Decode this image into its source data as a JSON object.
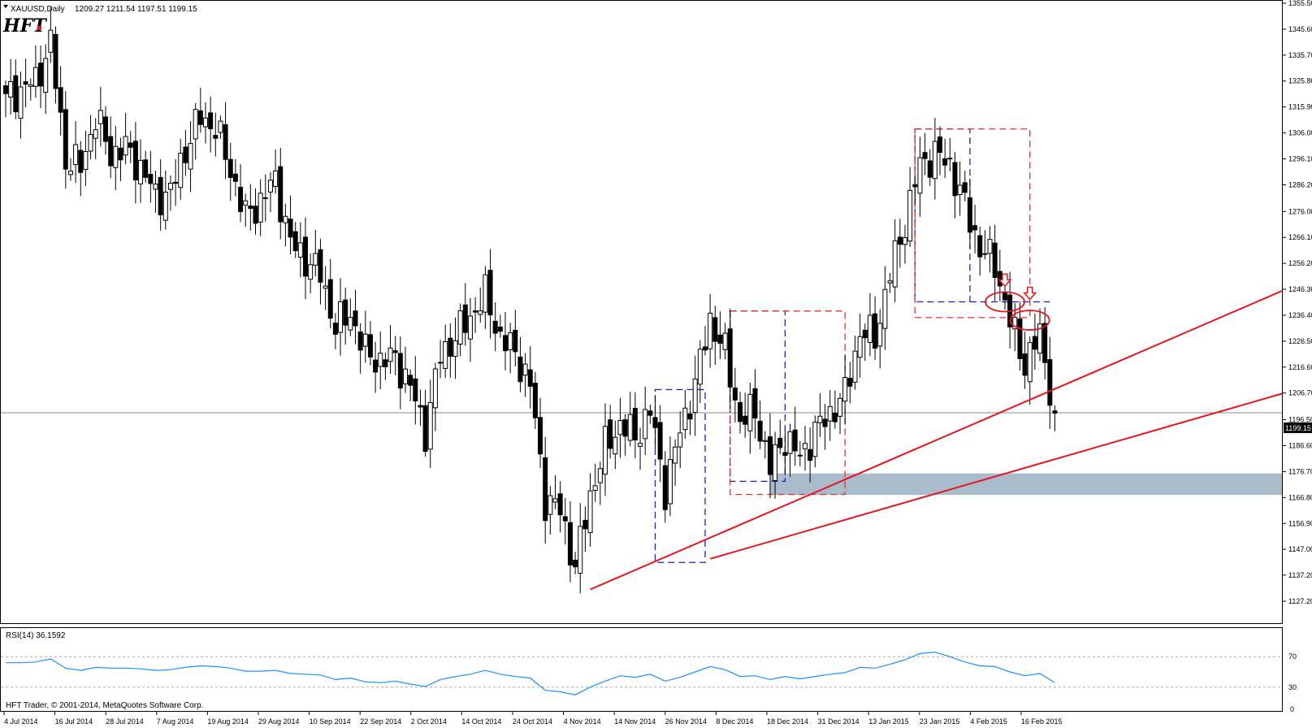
{
  "header": {
    "symbol": "XAUUSD,Daily",
    "ohlc": "1209.27 1211.54 1197.51 1199.15",
    "logo_text": "HFT"
  },
  "price_axis": {
    "labels": [
      "1355.50",
      "1345.60",
      "1335.70",
      "1325.80",
      "1315.90",
      "1306.00",
      "1296.10",
      "1286.20",
      "1276.00",
      "1266.10",
      "1256.20",
      "1246.30",
      "1236.40",
      "1226.50",
      "1216.60",
      "1206.70",
      "1196.50",
      "1186.60",
      "1176.70",
      "1166.80",
      "1156.90",
      "1147.00",
      "1137.20",
      "1127.20"
    ],
    "current_price": "1199.15"
  },
  "rsi": {
    "label": "RSI(14) 36.1592",
    "levels": [
      "70",
      "30"
    ],
    "zero": "0",
    "color": "#1e90ff"
  },
  "copyright": "HFT Trader, © 2001-2014, MetaQuotes Software Corp.",
  "date_axis": [
    "4 Jul 2014",
    "16 Jul 2014",
    "28 Jul 2014",
    "7 Aug 2014",
    "19 Aug 2014",
    "29 Aug 2014",
    "10 Sep 2014",
    "22 Sep 2014",
    "2 Oct 2014",
    "14 Oct 2014",
    "24 Oct 2014",
    "4 Nov 2014",
    "14 Nov 2014",
    "26 Nov 2014",
    "8 Dec 2014",
    "18 Dec 2014",
    "31 Dec 2014",
    "13 Jan 2015",
    "23 Jan 2015",
    "4 Feb 2015",
    "16 Feb 2015"
  ],
  "colors": {
    "trendline": "#e8141e",
    "box_blue": "#1a1adf",
    "box_red": "#e83030",
    "support_zone": "#a9bccb",
    "bear_candle": "#000000",
    "bull_candle": "#ffffff"
  },
  "chart_data": {
    "type": "candlestick",
    "ylim": [
      1127.2,
      1355.5
    ],
    "close_anchors": [
      [
        0,
        1321
      ],
      [
        3,
        1322
      ],
      [
        6,
        1326
      ],
      [
        9,
        1340
      ],
      [
        12,
        1296
      ],
      [
        15,
        1293
      ],
      [
        18,
        1312
      ],
      [
        21,
        1298
      ],
      [
        24,
        1300
      ],
      [
        27,
        1293
      ],
      [
        30,
        1282
      ],
      [
        33,
        1283
      ],
      [
        36,
        1300
      ],
      [
        39,
        1312
      ],
      [
        42,
        1308
      ],
      [
        45,
        1292
      ],
      [
        48,
        1274
      ],
      [
        51,
        1280
      ],
      [
        54,
        1288
      ],
      [
        57,
        1264
      ],
      [
        60,
        1258
      ],
      [
        63,
        1252
      ],
      [
        66,
        1232
      ],
      [
        69,
        1237
      ],
      [
        72,
        1222
      ],
      [
        75,
        1219
      ],
      [
        78,
        1220
      ],
      [
        81,
        1209
      ],
      [
        84,
        1192
      ],
      [
        87,
        1221
      ],
      [
        90,
        1228
      ],
      [
        93,
        1236
      ],
      [
        96,
        1244
      ],
      [
        99,
        1228
      ],
      [
        102,
        1222
      ],
      [
        105,
        1210
      ],
      [
        108,
        1166
      ],
      [
        111,
        1162
      ],
      [
        114,
        1140
      ],
      [
        117,
        1168
      ],
      [
        120,
        1186
      ],
      [
        123,
        1195
      ],
      [
        126,
        1190
      ],
      [
        129,
        1200
      ],
      [
        132,
        1170
      ],
      [
        135,
        1192
      ],
      [
        138,
        1210
      ],
      [
        141,
        1235
      ],
      [
        144,
        1222
      ],
      [
        147,
        1196
      ],
      [
        150,
        1200
      ],
      [
        153,
        1178
      ],
      [
        156,
        1190
      ],
      [
        159,
        1182
      ],
      [
        162,
        1192
      ],
      [
        165,
        1199
      ],
      [
        168,
        1206
      ],
      [
        171,
        1230
      ],
      [
        174,
        1228
      ],
      [
        177,
        1252
      ],
      [
        180,
        1272
      ],
      [
        183,
        1294
      ],
      [
        186,
        1298
      ],
      [
        189,
        1294
      ],
      [
        192,
        1278
      ],
      [
        195,
        1262
      ],
      [
        198,
        1256
      ],
      [
        201,
        1234
      ],
      [
        204,
        1218
      ],
      [
        207,
        1229
      ],
      [
        210,
        1199
      ]
    ],
    "candle_count": 211,
    "horizontal_line": 1199.15,
    "support_zone": [
      1167.8,
      1176.0
    ],
    "trendlines": [
      {
        "from": [
          117,
          1131.7
        ],
        "to": [
          251,
          1242.0
        ]
      },
      {
        "from": [
          141,
          1143.4
        ],
        "to": [
          251,
          1204.0
        ]
      }
    ],
    "boxes": [
      {
        "style": "blue",
        "x": [
          130,
          140
        ],
        "y": [
          1142.0,
          1208.0
        ]
      },
      {
        "style": "blue",
        "x": [
          145,
          156
        ],
        "y": [
          1173.0,
          1238.0
        ]
      },
      {
        "style": "red",
        "x": [
          145,
          168
        ],
        "y": [
          1168.0,
          1238.0
        ]
      },
      {
        "style": "blue",
        "x": [
          182,
          193
        ],
        "y": [
          1241.5,
          1307.5
        ]
      },
      {
        "style": "red",
        "x": [
          182,
          205
        ],
        "y": [
          1235.5,
          1307.5
        ]
      }
    ],
    "dashed_hline": {
      "x": [
        193,
        209
      ],
      "y": 1241.5
    },
    "ellipses": [
      {
        "cx": 200,
        "cy": 1241.5
      },
      {
        "cx": 205,
        "cy": 1234.5
      }
    ],
    "arrows": [
      {
        "x": 200,
        "y": 1249.0
      },
      {
        "x": 205,
        "y": 1244.0
      }
    ],
    "rsi_values": [
      62,
      62,
      63,
      67,
      55,
      52,
      56,
      55,
      55,
      54,
      52,
      53,
      56,
      58,
      57,
      55,
      51,
      51,
      52,
      48,
      47,
      46,
      40,
      42,
      37,
      36,
      38,
      34,
      31,
      40,
      44,
      47,
      52,
      47,
      44,
      42,
      26,
      24,
      20,
      30,
      38,
      45,
      43,
      47,
      38,
      43,
      50,
      57,
      53,
      44,
      45,
      40,
      44,
      41,
      44,
      47,
      49,
      56,
      55,
      60,
      66,
      74,
      76,
      70,
      63,
      58,
      57,
      50,
      45,
      48,
      36
    ],
    "rsi_ylim": [
      0,
      100
    ],
    "rsi_levels": [
      70,
      30
    ]
  }
}
